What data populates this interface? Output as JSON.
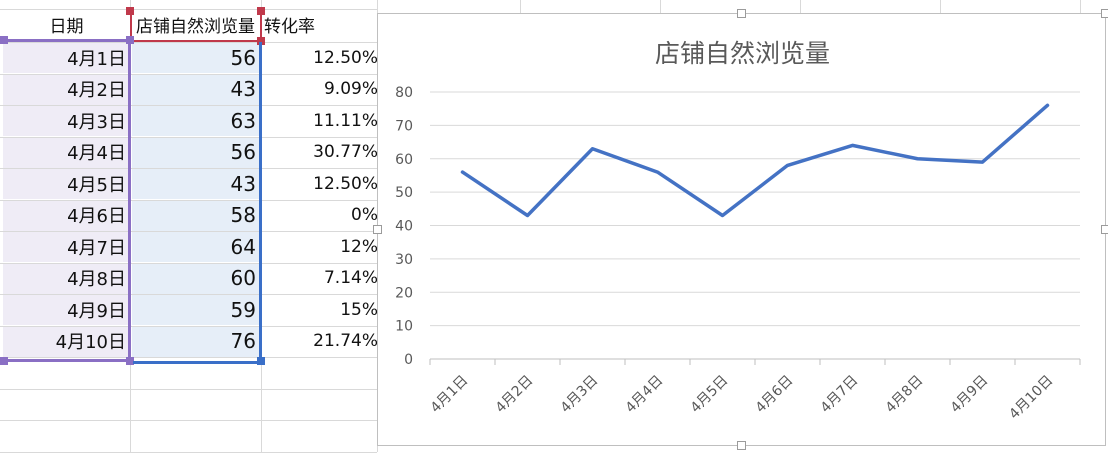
{
  "sheet": {
    "headers": {
      "date": "日期",
      "views": "店铺自然浏览量",
      "rate": "转化率"
    },
    "rows": [
      {
        "date": "4月1日",
        "views": "56",
        "rate": "12.50%"
      },
      {
        "date": "4月2日",
        "views": "43",
        "rate": "9.09%"
      },
      {
        "date": "4月3日",
        "views": "63",
        "rate": "11.11%"
      },
      {
        "date": "4月4日",
        "views": "56",
        "rate": "30.77%"
      },
      {
        "date": "4月5日",
        "views": "43",
        "rate": "12.50%"
      },
      {
        "date": "4月6日",
        "views": "58",
        "rate": "0%"
      },
      {
        "date": "4月7日",
        "views": "64",
        "rate": "12%"
      },
      {
        "date": "4月8日",
        "views": "60",
        "rate": "7.14%"
      },
      {
        "date": "4月9日",
        "views": "59",
        "rate": "15%"
      },
      {
        "date": "4月10日",
        "views": "76",
        "rate": "21.74%"
      }
    ],
    "colors": {
      "date_selection": "#8a6fc4",
      "views_selection": "#3a6fc8",
      "header_selection": "#c0394b"
    }
  },
  "chart_data": {
    "type": "line",
    "title": "店铺自然浏览量",
    "categories": [
      "4月1日",
      "4月2日",
      "4月3日",
      "4月4日",
      "4月5日",
      "4月6日",
      "4月7日",
      "4月8日",
      "4月9日",
      "4月10日"
    ],
    "series": [
      {
        "values": [
          56,
          43,
          63,
          56,
          43,
          58,
          64,
          60,
          59,
          76
        ],
        "color": "#4472c4"
      }
    ],
    "yticks": [
      "0",
      "10",
      "20",
      "30",
      "40",
      "50",
      "60",
      "70",
      "80"
    ],
    "ylim": [
      0,
      80
    ],
    "grid": true,
    "legend": "none"
  }
}
